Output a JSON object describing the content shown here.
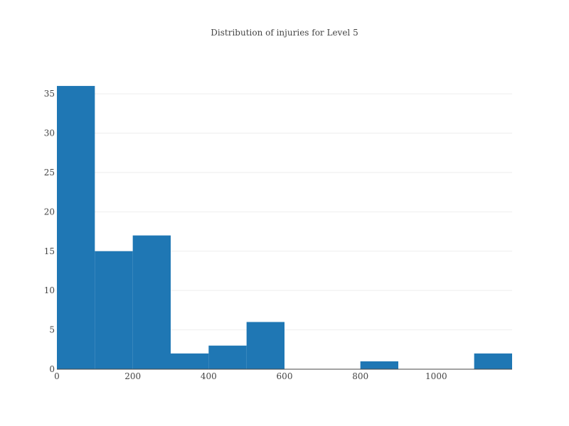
{
  "chart_data": {
    "type": "bar",
    "title": "Distribution of injuries for Level 5",
    "xlabel": "",
    "ylabel": "",
    "bin_width": 100,
    "bins": [
      {
        "start": 0,
        "end": 100,
        "count": 36
      },
      {
        "start": 100,
        "end": 200,
        "count": 15
      },
      {
        "start": 200,
        "end": 300,
        "count": 17
      },
      {
        "start": 300,
        "end": 400,
        "count": 2
      },
      {
        "start": 400,
        "end": 500,
        "count": 3
      },
      {
        "start": 500,
        "end": 600,
        "count": 6
      },
      {
        "start": 600,
        "end": 700,
        "count": 0
      },
      {
        "start": 700,
        "end": 800,
        "count": 0
      },
      {
        "start": 800,
        "end": 900,
        "count": 1
      },
      {
        "start": 900,
        "end": 1000,
        "count": 0
      },
      {
        "start": 1000,
        "end": 1100,
        "count": 0
      },
      {
        "start": 1100,
        "end": 1200,
        "count": 2
      }
    ],
    "xlim": [
      0,
      1200
    ],
    "ylim": [
      0,
      37.9
    ],
    "x_ticks": [
      0,
      200,
      400,
      600,
      800,
      1000
    ],
    "y_ticks": [
      0,
      5,
      10,
      15,
      20,
      25,
      30,
      35
    ],
    "grid": true,
    "bar_color": "#1f77b4"
  }
}
